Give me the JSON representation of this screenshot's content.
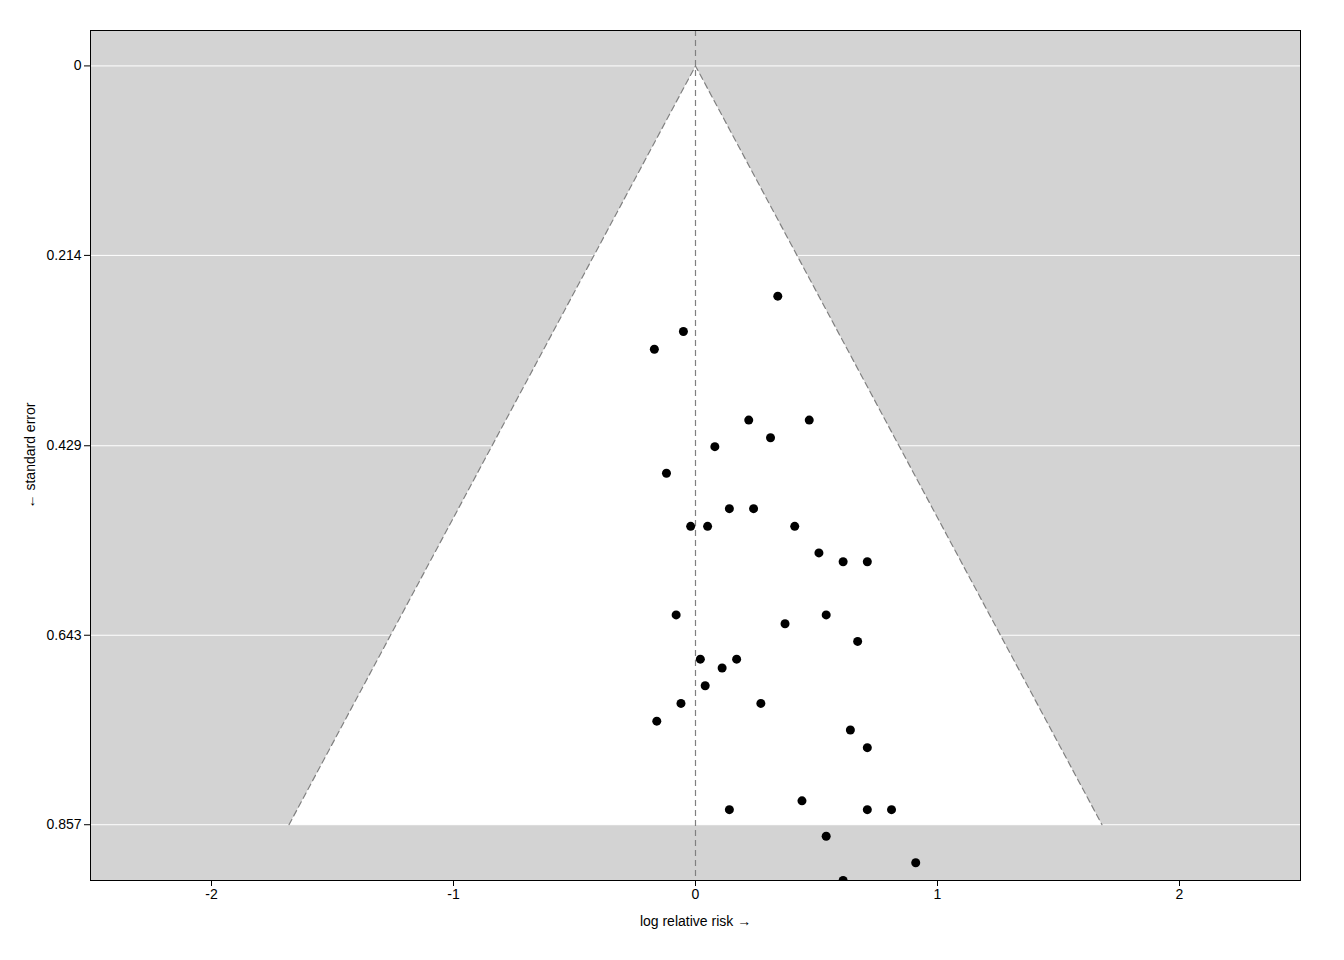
{
  "chart_data": {
    "type": "scatter",
    "xlabel": "log relative risk",
    "ylabel": "standard error",
    "xlim": [
      -2.5,
      2.5
    ],
    "ylim": [
      0.92,
      -0.04
    ],
    "xticks": [
      -2,
      -1,
      0,
      1,
      2
    ],
    "yticks": [
      0,
      0.214,
      0.429,
      0.643,
      0.857
    ],
    "grid": true,
    "color": "#d3d3d3",
    "series": [
      {
        "type": "area",
        "color": "#ffffff",
        "x": [
          0,
          1.67972,
          -1.67972,
          0
        ],
        "values": [
          0,
          0.857,
          0.857,
          0
        ]
      },
      {
        "type": "line",
        "color": "#808080",
        "line_style": "dashed",
        "x": [
          -1.67972,
          0,
          1.67972
        ],
        "values": [
          0.857,
          0,
          0.857
        ]
      },
      {
        "type": "rule",
        "color": "#808080",
        "line_style": "dashed",
        "x": [
          0
        ]
      },
      {
        "type": "scatter",
        "color": "#000000",
        "marker": "circle",
        "x": [
          -0.17,
          -0.05,
          0.34,
          -0.12,
          0.08,
          0.22,
          0.31,
          0.47,
          -0.02,
          0.05,
          0.14,
          0.24,
          0.41,
          0.51,
          0.61,
          0.71,
          -0.08,
          0.02,
          0.11,
          0.17,
          0.37,
          0.54,
          0.67,
          -0.16,
          -0.06,
          0.04,
          0.27,
          0.64,
          0.71,
          0.14,
          0.44,
          0.71,
          0.54,
          0.81,
          0.61,
          0.91
        ],
        "values": [
          0.32,
          0.3,
          0.26,
          0.46,
          0.43,
          0.4,
          0.42,
          0.4,
          0.52,
          0.52,
          0.5,
          0.5,
          0.52,
          0.55,
          0.56,
          0.56,
          0.62,
          0.67,
          0.68,
          0.67,
          0.63,
          0.62,
          0.65,
          0.74,
          0.72,
          0.7,
          0.72,
          0.75,
          0.77,
          0.84,
          0.83,
          0.84,
          0.87,
          0.84,
          0.92,
          0.9
        ]
      }
    ]
  }
}
